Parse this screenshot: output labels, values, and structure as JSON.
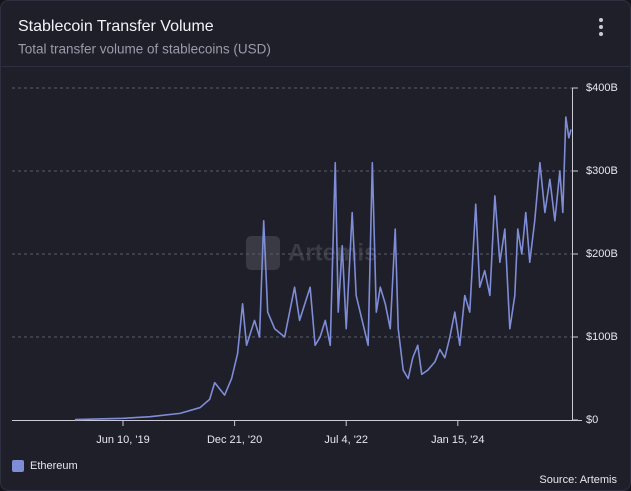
{
  "chart_data": {
    "type": "line",
    "title": "Stablecoin Transfer Volume",
    "subtitle": "Total transfer volume of stablecoins (USD)",
    "watermark": "Artemis",
    "source": "Source: Artemis",
    "x": [
      "2018-10-12",
      "2019-06-10",
      "2019-10-24",
      "2020-03-22",
      "2020-07-01",
      "2020-08-18",
      "2020-09-12",
      "2020-11-01",
      "2020-12-06",
      "2021-01-05",
      "2021-01-30",
      "2021-02-19",
      "2021-03-31",
      "2021-04-25",
      "2021-05-16",
      "2021-06-05",
      "2021-07-10",
      "2021-08-29",
      "2021-10-18",
      "2021-11-12",
      "2022-01-04",
      "2022-01-29",
      "2022-02-23",
      "2022-03-21",
      "2022-04-15",
      "2022-05-10",
      "2022-05-25",
      "2022-06-14",
      "2022-07-04",
      "2022-08-03",
      "2022-08-23",
      "2022-09-22",
      "2022-10-22",
      "2022-11-12",
      "2022-12-02",
      "2022-12-22",
      "2023-01-16",
      "2023-02-10",
      "2023-03-07",
      "2023-03-22",
      "2023-04-16",
      "2023-05-11",
      "2023-06-03",
      "2023-06-28",
      "2023-07-18",
      "2023-08-17",
      "2023-09-22",
      "2023-10-17",
      "2023-11-11",
      "2023-12-06",
      "2023-12-31",
      "2024-01-25",
      "2024-02-19",
      "2024-03-15",
      "2024-04-14",
      "2024-05-04",
      "2024-05-29",
      "2024-06-24",
      "2024-07-19",
      "2024-08-13",
      "2024-09-07",
      "2024-10-02",
      "2024-10-27",
      "2024-11-11",
      "2024-12-01",
      "2024-12-21",
      "2025-01-10",
      "2025-02-04",
      "2025-03-02",
      "2025-03-27",
      "2025-04-21",
      "2025-05-16",
      "2025-06-10",
      "2025-06-25",
      "2025-07-10",
      "2025-07-25",
      "2025-08-05"
    ],
    "series": [
      {
        "name": "Ethereum",
        "color": "#7f8cd6",
        "values": [
          0.5,
          2,
          4,
          8,
          15,
          25,
          45,
          30,
          50,
          80,
          140,
          90,
          120,
          100,
          240,
          130,
          110,
          100,
          160,
          120,
          160,
          90,
          100,
          120,
          90,
          310,
          130,
          210,
          110,
          250,
          150,
          120,
          90,
          310,
          130,
          160,
          140,
          110,
          230,
          110,
          60,
          50,
          75,
          90,
          55,
          60,
          70,
          85,
          75,
          100,
          130,
          90,
          150,
          130,
          260,
          160,
          180,
          150,
          270,
          190,
          230,
          110,
          150,
          230,
          200,
          250,
          190,
          240,
          310,
          250,
          290,
          240,
          300,
          250,
          365,
          340,
          350
        ]
      }
    ],
    "xlim": [
      "2017-11-30",
      "2025-08-10"
    ],
    "xticks": [
      {
        "value": "2019-06-10",
        "label": "Jun 10, '19"
      },
      {
        "value": "2020-12-21",
        "label": "Dec 21, '20"
      },
      {
        "value": "2022-07-04",
        "label": "Jul 4, '22"
      },
      {
        "value": "2024-01-15",
        "label": "Jan 15, '24"
      }
    ],
    "ylim": [
      0,
      400
    ],
    "yticks": [
      {
        "value": 0,
        "label": "$0"
      },
      {
        "value": 100,
        "label": "$100B"
      },
      {
        "value": 200,
        "label": "$200B"
      },
      {
        "value": 300,
        "label": "$300B"
      },
      {
        "value": 400,
        "label": "$400B"
      }
    ],
    "grid": true,
    "legend": "bottom-left"
  }
}
